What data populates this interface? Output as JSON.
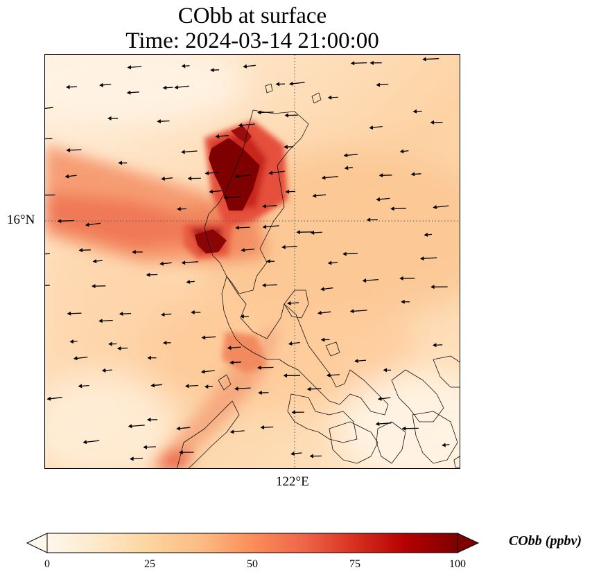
{
  "title": {
    "line1": "CObb at surface",
    "line2": "Time: 2024-03-14 21:00:00"
  },
  "axes": {
    "lat_label": "16°N",
    "lon_label": "122°E"
  },
  "colorbar": {
    "label": "CObb (ppbv)",
    "range": [
      0,
      100
    ],
    "ticks": [
      "0",
      "25",
      "50",
      "75",
      "100"
    ],
    "extend": "both",
    "colormap": "OrRd",
    "colors": [
      "#fff7ec",
      "#fee8c8",
      "#fdd49e",
      "#fdbb84",
      "#fc8d59",
      "#ef6548",
      "#d7301f",
      "#b30000",
      "#7f0000"
    ]
  },
  "map": {
    "projection": "lat-lon",
    "gridlines": "dotted",
    "coastlines": true,
    "wind_vectors": true,
    "field": "CObb concentration at surface"
  }
}
